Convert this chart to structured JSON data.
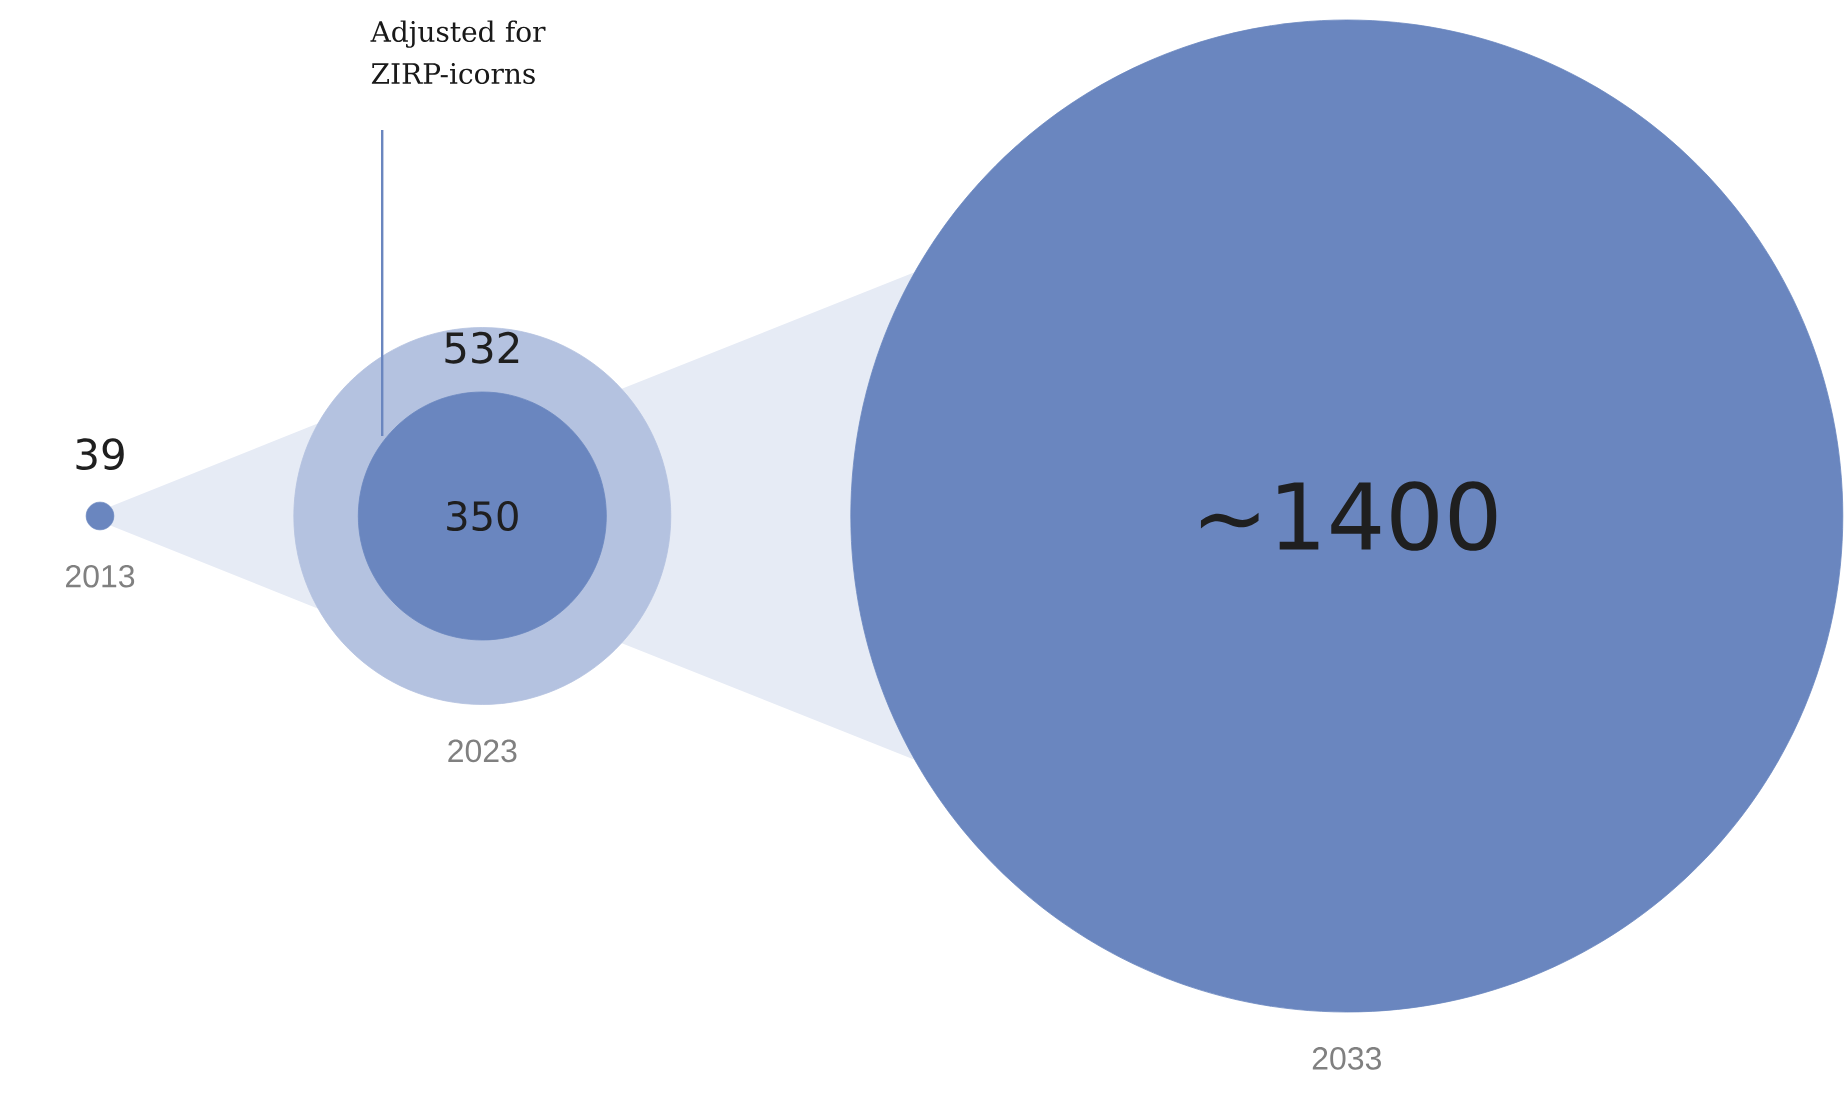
{
  "chart_data": {
    "type": "other",
    "categories": [
      "2013",
      "2023",
      "2033"
    ],
    "series": [
      {
        "color": "#b4c2e0",
        "values": [
          null,
          532,
          null
        ],
        "value_labels": [
          null,
          "532",
          null
        ]
      },
      {
        "color": "#6a86bf",
        "values": [
          39,
          350,
          1400
        ],
        "value_labels": [
          "39",
          "350",
          "~1400"
        ]
      }
    ],
    "annotations": [
      "Adjusted for ZIRP-icorns"
    ]
  }
}
